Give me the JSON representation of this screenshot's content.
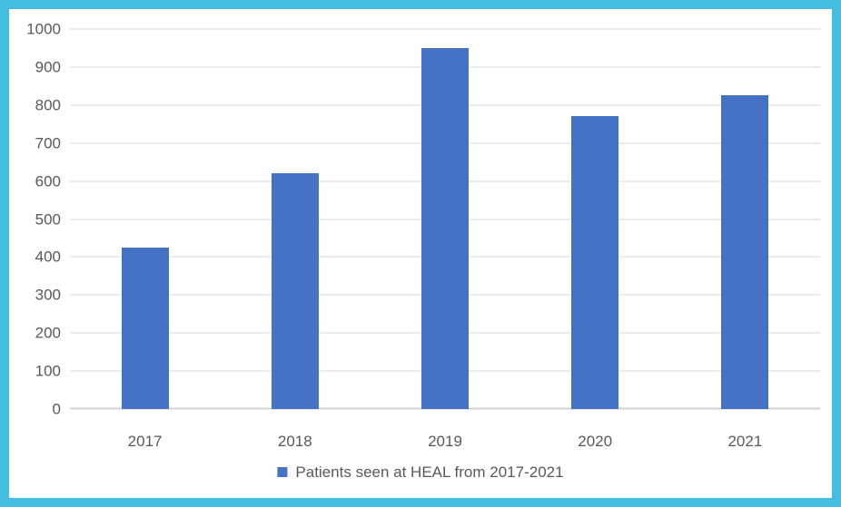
{
  "chart_data": {
    "type": "bar",
    "categories": [
      "2017",
      "2018",
      "2019",
      "2020",
      "2021"
    ],
    "values": [
      425,
      620,
      950,
      770,
      825
    ],
    "legend": "Patients seen at HEAL from 2017-2021",
    "title": "",
    "xlabel": "",
    "ylabel": "",
    "ylim": [
      0,
      1000
    ],
    "ytick_step": 100,
    "grid": true,
    "legend_position": "bottom",
    "bar_color": "#4472c4"
  },
  "colors": {
    "frame_border": "#45bde0",
    "background": "#ffffff",
    "gridline": "#d9d9d9",
    "axis_line": "#d2d2d2",
    "tick_text": "#595959"
  }
}
